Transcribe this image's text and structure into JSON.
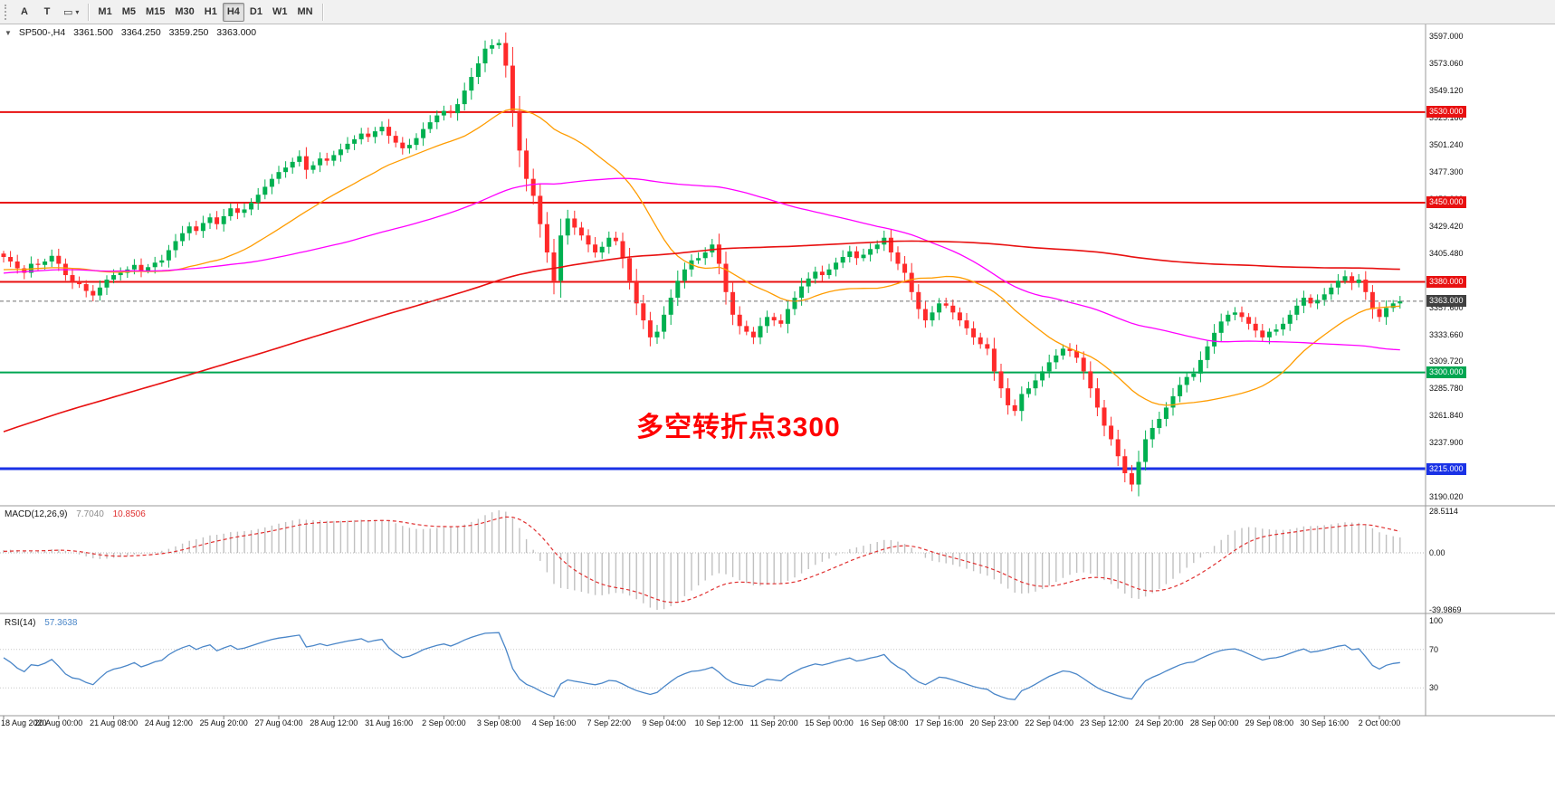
{
  "toolbar": {
    "tools": [
      {
        "id": "text-label-tool",
        "label": "A"
      },
      {
        "id": "text-tool",
        "label": "T"
      },
      {
        "id": "drawing-tools",
        "label": "▭",
        "caret": "▾"
      }
    ],
    "timeframes": [
      {
        "label": "M1"
      },
      {
        "label": "M5"
      },
      {
        "label": "M15"
      },
      {
        "label": "M30"
      },
      {
        "label": "H1"
      },
      {
        "label": "H4",
        "active": true
      },
      {
        "label": "D1"
      },
      {
        "label": "W1"
      },
      {
        "label": "MN"
      }
    ]
  },
  "header": {
    "collapse_icon": "▼",
    "symbol_period": "SP500-,H4",
    "open": "3361.500",
    "high": "3364.250",
    "low": "3359.250",
    "close": "3363.000"
  },
  "chart_data": {
    "type": "candlestick",
    "title": "SP500-,H4",
    "bar_interval": "H4",
    "first_open": 3405,
    "closes": [
      3402,
      3398,
      3392,
      3388,
      3396,
      3395,
      3398,
      3403,
      3396,
      3386,
      3380,
      3378,
      3372,
      3368,
      3375,
      3382,
      3386,
      3388,
      3391,
      3395,
      3390,
      3393,
      3397,
      3399,
      3408,
      3416,
      3423,
      3429,
      3425,
      3432,
      3437,
      3431,
      3438,
      3445,
      3441,
      3444,
      3450,
      3457,
      3464,
      3471,
      3477,
      3481,
      3486,
      3491,
      3479,
      3483,
      3489,
      3487,
      3492,
      3497,
      3502,
      3506,
      3511,
      3508,
      3513,
      3517,
      3509,
      3503,
      3498,
      3501,
      3507,
      3515,
      3521,
      3527,
      3531,
      3529,
      3537,
      3549,
      3561,
      3573,
      3586,
      3589,
      3591,
      3571,
      3531,
      3496,
      3471,
      3456,
      3431,
      3406,
      3381,
      3421,
      3436,
      3428,
      3421,
      3413,
      3406,
      3411,
      3419,
      3416,
      3401,
      3381,
      3361,
      3346,
      3331,
      3336,
      3351,
      3366,
      3381,
      3391,
      3399,
      3401,
      3406,
      3413,
      3396,
      3371,
      3351,
      3341,
      3336,
      3331,
      3341,
      3349,
      3346,
      3343,
      3356,
      3366,
      3376,
      3383,
      3389,
      3386,
      3391,
      3397,
      3402,
      3407,
      3401,
      3404,
      3409,
      3413,
      3419,
      3406,
      3396,
      3388,
      3371,
      3356,
      3346,
      3353,
      3361,
      3359,
      3353,
      3346,
      3339,
      3331,
      3325,
      3321,
      3301,
      3286,
      3271,
      3266,
      3281,
      3286,
      3293,
      3301,
      3309,
      3315,
      3321,
      3319,
      3313,
      3301,
      3286,
      3269,
      3253,
      3241,
      3226,
      3211,
      3201,
      3221,
      3241,
      3251,
      3259,
      3269,
      3279,
      3289,
      3296,
      3299,
      3311,
      3323,
      3335,
      3345,
      3351,
      3353,
      3349,
      3343,
      3337,
      3331,
      3336,
      3338,
      3343,
      3351,
      3359,
      3366,
      3361,
      3364,
      3369,
      3375,
      3381,
      3385,
      3379,
      3382,
      3371,
      3356,
      3349,
      3357,
      3361,
      3363
    ],
    "label_every_n_bars": 8,
    "time_labels": [
      "18 Aug 2020",
      "20 Aug 00:00",
      "21 Aug 08:00",
      "24 Aug 12:00",
      "25 Aug 20:00",
      "27 Aug 04:00",
      "28 Aug 12:00",
      "31 Aug 16:00",
      "2 Sep 00:00",
      "3 Sep 08:00",
      "4 Sep 16:00",
      "7 Sep 22:00",
      "9 Sep 04:00",
      "10 Sep 12:00",
      "11 Sep 20:00",
      "15 Sep 00:00",
      "16 Sep 08:00",
      "17 Sep 16:00",
      "20 Sep 23:00",
      "22 Sep 04:00",
      "23 Sep 12:00",
      "24 Sep 20:00",
      "28 Sep 00:00",
      "29 Sep 08:00",
      "30 Sep 16:00",
      "2 Oct 00:00"
    ],
    "price_axis_labels": [
      "3597.000",
      "3573.060",
      "3549.120",
      "3525.180",
      "3501.240",
      "3477.300",
      "3453.360",
      "3429.420",
      "3405.480",
      "3381.540",
      "3357.600",
      "3333.660",
      "3309.720",
      "3285.780",
      "3261.840",
      "3237.900",
      "3213.960",
      "3190.020"
    ],
    "price_min": 3184,
    "price_max": 3605,
    "horizontal_lines": [
      {
        "price": 3530,
        "label": "3530.000",
        "color": "#e81010",
        "width": 2
      },
      {
        "price": 3450,
        "label": "3450.000",
        "color": "#e81010",
        "width": 2
      },
      {
        "price": 3380,
        "label": "3380.000",
        "color": "#e81010",
        "width": 2
      },
      {
        "price": 3300,
        "label": "3300.000",
        "color": "#00a651",
        "width": 2
      },
      {
        "price": 3215,
        "label": "3215.000",
        "color": "#1a32e6",
        "width": 3
      }
    ],
    "current_price": {
      "value": 3363,
      "label": "3363.000",
      "badge_color": "#404040",
      "line_color": "#707070"
    },
    "moving_averages": [
      {
        "name": "ma-fast",
        "window": 24,
        "color": "#ff9c00"
      },
      {
        "name": "ma-medium",
        "window": 72,
        "color": "#ff00ff"
      },
      {
        "name": "ma-slow",
        "window": 200,
        "color": "#e81010"
      }
    ],
    "candles": {
      "up_color": "#00b050",
      "down_color": "#ff2a2a"
    },
    "annotation": {
      "text": "多空转折点3300",
      "color": "#ff0000"
    },
    "indicators": {
      "macd": {
        "label": "MACD(12,26,9)",
        "main_value": "7.7040",
        "signal_value": "10.8506",
        "main_value_color": "#8c8c8c",
        "axis_labels": [
          "28.5114",
          "0.00",
          "-39.9869"
        ],
        "histogram_color": "#c0c0c0",
        "signal_color": "#e03030",
        "params": [
          12,
          26,
          9
        ]
      },
      "rsi": {
        "label": "RSI(14)",
        "value": "57.3638",
        "axis_labels": [
          "100",
          "70",
          "30"
        ],
        "line_color": "#4a86c8",
        "levels": [
          70,
          30
        ],
        "period": 14
      }
    }
  }
}
